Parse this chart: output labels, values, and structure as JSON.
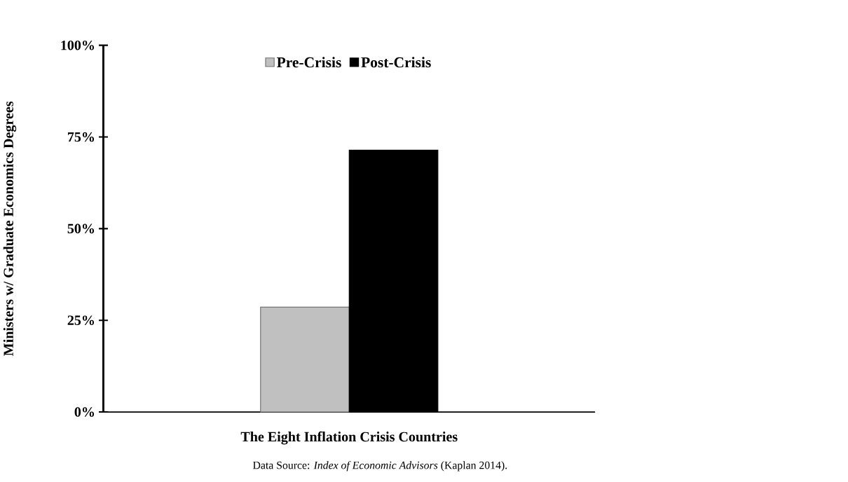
{
  "chart_data": {
    "type": "bar",
    "xlabel": "The Eight Inflation Crisis Countries",
    "ylabel": "Ministers w/ Graduate Economics Degrees",
    "categories": [
      null
    ],
    "series": [
      {
        "name": "Pre-Crisis",
        "color": "#c0c0c0",
        "values": [
          28.6
        ]
      },
      {
        "name": "Post-Crisis",
        "color": "#000000",
        "values": [
          71.4
        ]
      }
    ],
    "ylim": [
      0,
      100
    ],
    "yticks": [
      {
        "value": 0,
        "label": "0%"
      },
      {
        "value": 25,
        "label": "25%"
      },
      {
        "value": 50,
        "label": "50%"
      },
      {
        "value": 75,
        "label": "75%"
      },
      {
        "value": 100,
        "label": "100%"
      }
    ],
    "grid": false,
    "legend": "top",
    "annotations": [
      "Data Source:  *Index of Economic Advisors* (Kaplan 2014)."
    ]
  }
}
